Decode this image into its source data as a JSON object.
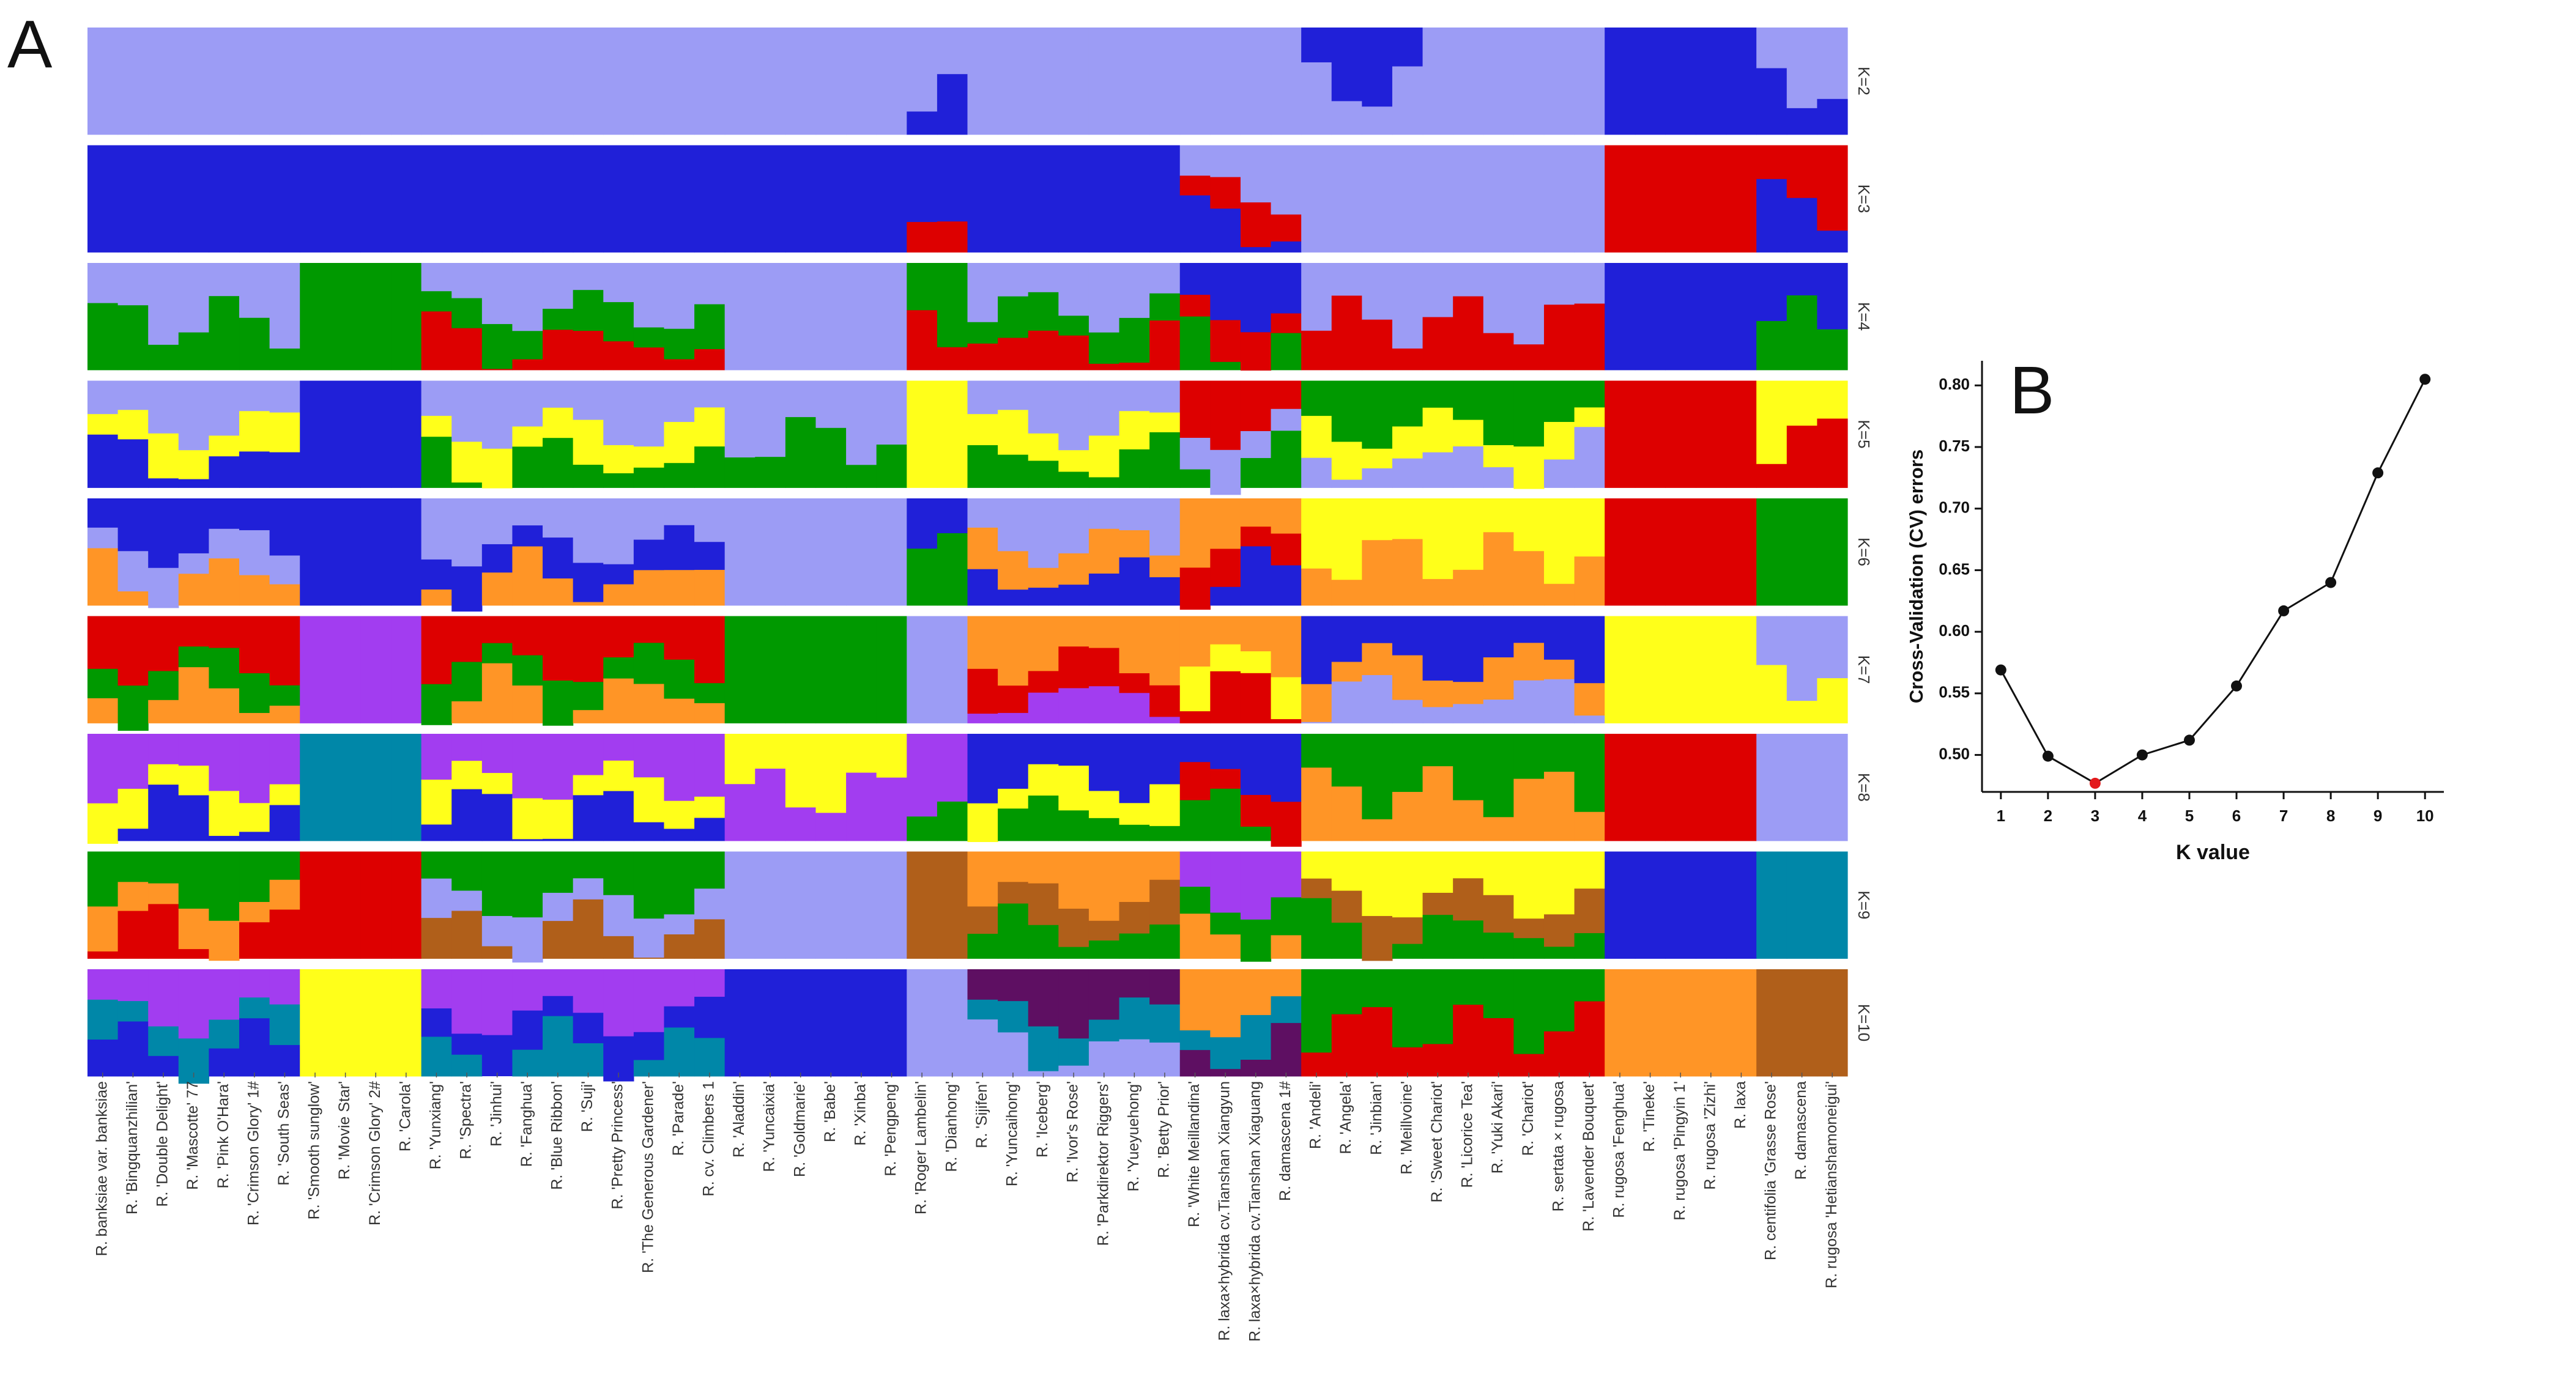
{
  "panel_labels": {
    "a": "A",
    "b": "B"
  },
  "colors": {
    "lavender": "#9c9cf5",
    "blue": "#2020d8",
    "red": "#dd0000",
    "green": "#009900",
    "yellow": "#ffff1a",
    "orange": "#ff9526",
    "purple": "#a23df0",
    "teal": "#0087a8",
    "brown": "#b05f1a",
    "darkpurple": "#5e0f62"
  },
  "chart_data": [
    {
      "type": "stacked-bar",
      "title": "A",
      "samples": [
        "R. banksiae var. banksiae",
        "R. 'Bingquanzhilian'",
        "R. 'Double Delight'",
        "R. 'Mascotte' 77",
        "R. 'Pink O'Hara'",
        "R. 'Crimson Glory' 1#",
        "R. 'South Seas'",
        "R. 'Smooth sunglow'",
        "R. 'Movie Star'",
        "R. 'Crimson Glory' 2#",
        "R. 'Carola'",
        "R. 'Yunxiang'",
        "R. 'Spectra'",
        "R. 'Jinhui'",
        "R. 'Fanghua'",
        "R. 'Blue Ribbon'",
        "R. 'Suji'",
        "R. 'Pretty Princess'",
        "R. 'The Generous Gardener'",
        "R. 'Parade'",
        "R. cv. Climbers 1",
        "R. 'Aladdin'",
        "R. 'Yuncaixia'",
        "R. 'Goldmarie'",
        "R. 'Babe'",
        "R. 'Xinba'",
        "R. 'Pengpeng'",
        "R. 'Roger Lambelin'",
        "R. 'Dianhong'",
        "R. 'Sijifen'",
        "R. 'Yuncaihong'",
        "R. 'Iceberg'",
        "R. 'Ivor's Rose'",
        "R. 'Parkdirektor Riggers'",
        "R. 'Yueyuehong'",
        "R. 'Betty Prior'",
        "R. 'White Meillandina'",
        "R. laxa×hybrida cv.Tianshan Xiangyun",
        "R. laxa×hybrida cv.Tianshan Xiaguang",
        "R. damascena 1#",
        "R. 'Andeli'",
        "R. 'Angela'",
        "R. 'Jinbian'",
        "R. 'Meillvoine'",
        "R. 'Sweet Chariot'",
        "R. 'Licorice Tea'",
        "R. 'Yuki Akari'",
        "R. 'Chariot'",
        "R. sertata × rugosa",
        "R. 'Lavender Bouquet'",
        "R. rugosa 'Fenghua'",
        "R. 'Tineke'",
        "R. rugosa 'Pingyin 1'",
        "R. rugosa 'Zizhi'",
        "R. laxa",
        "R. centifolia 'Grasse Rose'",
        "R. damascena",
        "R. rugosa 'Hetianshamoneigui'"
      ],
      "rows": [
        {
          "label": "K=2",
          "segments": [
            {
              "w": 7,
              "c": [
                "lavender"
              ]
            },
            {
              "w": 4,
              "c": [
                "lavender"
              ]
            },
            {
              "w": 10,
              "c": [
                "lavender"
              ]
            },
            {
              "w": 6,
              "c": [
                "lavender"
              ]
            },
            {
              "w": 2,
              "c": [
                "lavender",
                "blue"
              ]
            },
            {
              "w": 11,
              "c": [
                "lavender"
              ]
            },
            {
              "w": 4,
              "c": [
                "blue",
                "lavender"
              ]
            },
            {
              "w": 6,
              "c": [
                "lavender"
              ]
            },
            {
              "w": 5,
              "c": [
                "blue"
              ]
            },
            {
              "w": 3,
              "c": [
                "lavender",
                "blue"
              ]
            }
          ]
        },
        {
          "label": "K=3",
          "segments": [
            {
              "w": 7,
              "c": [
                "blue"
              ]
            },
            {
              "w": 4,
              "c": [
                "blue"
              ]
            },
            {
              "w": 10,
              "c": [
                "blue"
              ]
            },
            {
              "w": 6,
              "c": [
                "blue"
              ]
            },
            {
              "w": 2,
              "c": [
                "blue",
                "red"
              ]
            },
            {
              "w": 7,
              "c": [
                "blue"
              ]
            },
            {
              "w": 4,
              "c": [
                "lavender",
                "red",
                "blue"
              ]
            },
            {
              "w": 10,
              "c": [
                "lavender"
              ]
            },
            {
              "w": 5,
              "c": [
                "red"
              ]
            },
            {
              "w": 3,
              "c": [
                "red",
                "blue"
              ]
            }
          ]
        },
        {
          "label": "K=4",
          "segments": [
            {
              "w": 7,
              "c": [
                "lavender",
                "green"
              ]
            },
            {
              "w": 4,
              "c": [
                "green"
              ]
            },
            {
              "w": 10,
              "c": [
                "lavender",
                "green",
                "red"
              ]
            },
            {
              "w": 6,
              "c": [
                "lavender"
              ]
            },
            {
              "w": 2,
              "c": [
                "green",
                "red"
              ]
            },
            {
              "w": 7,
              "c": [
                "lavender",
                "green",
                "red"
              ]
            },
            {
              "w": 4,
              "c": [
                "blue",
                "red",
                "green"
              ]
            },
            {
              "w": 10,
              "c": [
                "lavender",
                "red"
              ]
            },
            {
              "w": 5,
              "c": [
                "blue"
              ]
            },
            {
              "w": 3,
              "c": [
                "blue",
                "green"
              ]
            }
          ]
        },
        {
          "label": "K=5",
          "segments": [
            {
              "w": 7,
              "c": [
                "lavender",
                "yellow",
                "blue"
              ]
            },
            {
              "w": 4,
              "c": [
                "blue"
              ]
            },
            {
              "w": 10,
              "c": [
                "lavender",
                "yellow",
                "green"
              ]
            },
            {
              "w": 6,
              "c": [
                "lavender",
                "green"
              ]
            },
            {
              "w": 2,
              "c": [
                "yellow"
              ]
            },
            {
              "w": 7,
              "c": [
                "lavender",
                "yellow",
                "green"
              ]
            },
            {
              "w": 4,
              "c": [
                "red",
                "lavender",
                "green"
              ]
            },
            {
              "w": 10,
              "c": [
                "green",
                "yellow",
                "lavender"
              ]
            },
            {
              "w": 5,
              "c": [
                "red"
              ]
            },
            {
              "w": 3,
              "c": [
                "yellow",
                "red"
              ]
            }
          ]
        },
        {
          "label": "K=6",
          "segments": [
            {
              "w": 7,
              "c": [
                "blue",
                "lavender",
                "orange"
              ]
            },
            {
              "w": 4,
              "c": [
                "blue"
              ]
            },
            {
              "w": 10,
              "c": [
                "lavender",
                "blue",
                "orange"
              ]
            },
            {
              "w": 6,
              "c": [
                "lavender"
              ]
            },
            {
              "w": 2,
              "c": [
                "blue",
                "green"
              ]
            },
            {
              "w": 7,
              "c": [
                "lavender",
                "orange",
                "blue"
              ]
            },
            {
              "w": 4,
              "c": [
                "orange",
                "red",
                "blue"
              ]
            },
            {
              "w": 10,
              "c": [
                "yellow",
                "orange"
              ]
            },
            {
              "w": 5,
              "c": [
                "red"
              ]
            },
            {
              "w": 3,
              "c": [
                "green"
              ]
            }
          ]
        },
        {
          "label": "K=7",
          "segments": [
            {
              "w": 7,
              "c": [
                "red",
                "green",
                "orange"
              ]
            },
            {
              "w": 4,
              "c": [
                "purple"
              ]
            },
            {
              "w": 10,
              "c": [
                "red",
                "green",
                "orange"
              ]
            },
            {
              "w": 6,
              "c": [
                "green"
              ]
            },
            {
              "w": 2,
              "c": [
                "lavender"
              ]
            },
            {
              "w": 7,
              "c": [
                "orange",
                "red",
                "purple"
              ]
            },
            {
              "w": 4,
              "c": [
                "orange",
                "yellow",
                "red"
              ]
            },
            {
              "w": 10,
              "c": [
                "blue",
                "orange",
                "lavender"
              ]
            },
            {
              "w": 5,
              "c": [
                "yellow"
              ]
            },
            {
              "w": 3,
              "c": [
                "lavender",
                "yellow"
              ]
            }
          ]
        },
        {
          "label": "K=8",
          "segments": [
            {
              "w": 7,
              "c": [
                "purple",
                "yellow",
                "blue"
              ]
            },
            {
              "w": 4,
              "c": [
                "teal"
              ]
            },
            {
              "w": 10,
              "c": [
                "purple",
                "yellow",
                "blue"
              ]
            },
            {
              "w": 6,
              "c": [
                "yellow",
                "purple"
              ]
            },
            {
              "w": 2,
              "c": [
                "purple",
                "green"
              ]
            },
            {
              "w": 7,
              "c": [
                "blue",
                "yellow",
                "green"
              ]
            },
            {
              "w": 4,
              "c": [
                "blue",
                "red",
                "green"
              ]
            },
            {
              "w": 10,
              "c": [
                "green",
                "orange"
              ]
            },
            {
              "w": 5,
              "c": [
                "red"
              ]
            },
            {
              "w": 3,
              "c": [
                "lavender"
              ]
            }
          ]
        },
        {
          "label": "K=9",
          "segments": [
            {
              "w": 7,
              "c": [
                "green",
                "orange",
                "red"
              ]
            },
            {
              "w": 4,
              "c": [
                "red"
              ]
            },
            {
              "w": 10,
              "c": [
                "green",
                "lavender",
                "brown",
                "yellow"
              ]
            },
            {
              "w": 6,
              "c": [
                "lavender"
              ]
            },
            {
              "w": 2,
              "c": [
                "brown"
              ]
            },
            {
              "w": 7,
              "c": [
                "orange",
                "brown",
                "green"
              ]
            },
            {
              "w": 4,
              "c": [
                "purple",
                "green",
                "orange"
              ]
            },
            {
              "w": 10,
              "c": [
                "yellow",
                "brown",
                "green"
              ]
            },
            {
              "w": 5,
              "c": [
                "blue"
              ]
            },
            {
              "w": 3,
              "c": [
                "teal"
              ]
            }
          ]
        },
        {
          "label": "K=10",
          "segments": [
            {
              "w": 7,
              "c": [
                "purple",
                "teal",
                "blue"
              ]
            },
            {
              "w": 4,
              "c": [
                "yellow"
              ]
            },
            {
              "w": 10,
              "c": [
                "purple",
                "blue",
                "teal"
              ]
            },
            {
              "w": 6,
              "c": [
                "blue"
              ]
            },
            {
              "w": 2,
              "c": [
                "lavender"
              ]
            },
            {
              "w": 7,
              "c": [
                "darkpurple",
                "teal",
                "lavender"
              ]
            },
            {
              "w": 4,
              "c": [
                "orange",
                "teal",
                "darkpurple"
              ]
            },
            {
              "w": 10,
              "c": [
                "green",
                "red"
              ]
            },
            {
              "w": 5,
              "c": [
                "orange"
              ]
            },
            {
              "w": 3,
              "c": [
                "brown"
              ]
            }
          ]
        }
      ]
    },
    {
      "type": "line",
      "title": "B",
      "xlabel": "K value",
      "ylabel": "Cross-Validation (CV) errors",
      "x": [
        1,
        2,
        3,
        4,
        5,
        6,
        7,
        8,
        9,
        10
      ],
      "y": [
        0.569,
        0.499,
        0.477,
        0.5,
        0.512,
        0.556,
        0.617,
        0.64,
        0.729,
        0.805
      ],
      "highlight_index": 2,
      "highlight_color": "#e31a1c",
      "point_color": "#111111",
      "xlim": [
        0.6,
        10.4
      ],
      "ylim": [
        0.47,
        0.82
      ],
      "yticks": [
        0.5,
        0.55,
        0.6,
        0.65,
        0.7,
        0.75,
        0.8
      ],
      "ytick_labels": [
        "0.50",
        "0.55",
        "0.60",
        "0.65",
        "0.70",
        "0.75",
        "0.80"
      ],
      "xtick_labels": [
        "1",
        "2",
        "3",
        "4",
        "5",
        "6",
        "7",
        "8",
        "9",
        "10"
      ]
    }
  ]
}
